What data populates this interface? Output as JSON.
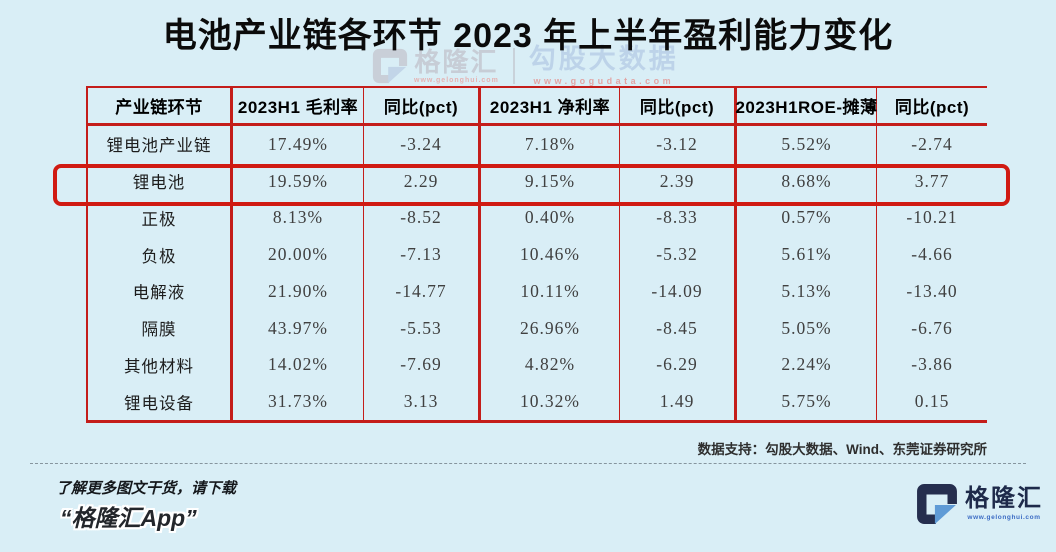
{
  "title": "电池产业链各环节 2023 年上半年盈利能力变化",
  "watermark": {
    "brand": "格隆汇",
    "brand_url": "www.gelonghui.com",
    "data_brand": "勾股大数据",
    "data_url": "www.gogudata.com"
  },
  "chart_data": {
    "type": "table",
    "title": "电池产业链各环节 2023 年上半年盈利能力变化",
    "columns": [
      "产业链环节",
      "2023H1 毛利率",
      "同比(pct)",
      "2023H1 净利率",
      "同比(pct)",
      "2023H1ROE-摊薄",
      "同比(pct)"
    ],
    "rows": [
      [
        "锂电池产业链",
        "17.49%",
        "-3.24",
        "7.18%",
        "-3.12",
        "5.52%",
        "-2.74"
      ],
      [
        "锂电池",
        "19.59%",
        "2.29",
        "9.15%",
        "2.39",
        "8.68%",
        "3.77"
      ],
      [
        "正极",
        "8.13%",
        "-8.52",
        "0.40%",
        "-8.33",
        "0.57%",
        "-10.21"
      ],
      [
        "负极",
        "20.00%",
        "-7.13",
        "10.46%",
        "-5.32",
        "5.61%",
        "-4.66"
      ],
      [
        "电解液",
        "21.90%",
        "-14.77",
        "10.11%",
        "-14.09",
        "5.13%",
        "-13.40"
      ],
      [
        "隔膜",
        "43.97%",
        "-5.53",
        "26.96%",
        "-8.45",
        "5.05%",
        "-6.76"
      ],
      [
        "其他材料",
        "14.02%",
        "-7.69",
        "4.82%",
        "-6.29",
        "2.24%",
        "-3.86"
      ],
      [
        "锂电设备",
        "31.73%",
        "3.13",
        "10.32%",
        "1.49",
        "5.75%",
        "0.15"
      ]
    ],
    "highlight_row_index": 1,
    "highlight_row_label": "锂电池"
  },
  "source": "数据支持：勾股大数据、Wind、东莞证券研究所",
  "footer": {
    "promo_line1": "了解更多图文干货，请下载",
    "promo_line2": "“格隆汇App”",
    "brand": "格隆汇",
    "brand_url": "www.gelonghui.com"
  },
  "colors": {
    "background": "#d9eef6",
    "table_line_red": "#c41d1a",
    "highlight_red": "#d01a12",
    "brand_navy": "#232c4c",
    "brand_blue": "#5f9bd6"
  }
}
